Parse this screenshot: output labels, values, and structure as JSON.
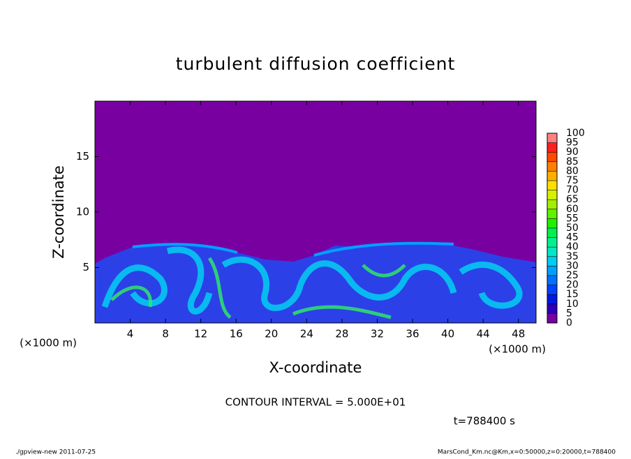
{
  "chart_data": {
    "type": "contour",
    "title": "turbulent diffusion coefficient",
    "xlabel": "X-coordinate",
    "ylabel": "Z-coordinate",
    "xunit": "(×1000 m)",
    "yunit": "(×1000 m)",
    "xlim": [
      0,
      50
    ],
    "xticks": [
      4,
      8,
      12,
      16,
      20,
      24,
      28,
      32,
      36,
      40,
      44,
      48
    ],
    "ylim": [
      0,
      20
    ],
    "yticks": [
      5,
      10,
      15
    ],
    "colorbar": {
      "levels": [
        0,
        5,
        10,
        15,
        20,
        25,
        30,
        35,
        40,
        45,
        50,
        55,
        60,
        65,
        70,
        75,
        80,
        85,
        90,
        95,
        100
      ],
      "colors": [
        "#7800a0",
        "#2c00b8",
        "#0018e0",
        "#0040ff",
        "#0070ff",
        "#00a0ff",
        "#00ccf0",
        "#00e8c8",
        "#00f090",
        "#00f050",
        "#20f000",
        "#60f000",
        "#a0f000",
        "#d8f000",
        "#ffe000",
        "#ffb000",
        "#ff8000",
        "#ff4800",
        "#ff2020",
        "#ff8080"
      ]
    },
    "annotations": [
      "CONTOUR INTERVAL = 5.000E+01",
      "t=788400 s"
    ],
    "footer_left": "./gpview-new  2011-07-25",
    "footer_right": "MarsCond_Km.nc@Km,x=0:50000,z=0:20000,t=788400"
  }
}
